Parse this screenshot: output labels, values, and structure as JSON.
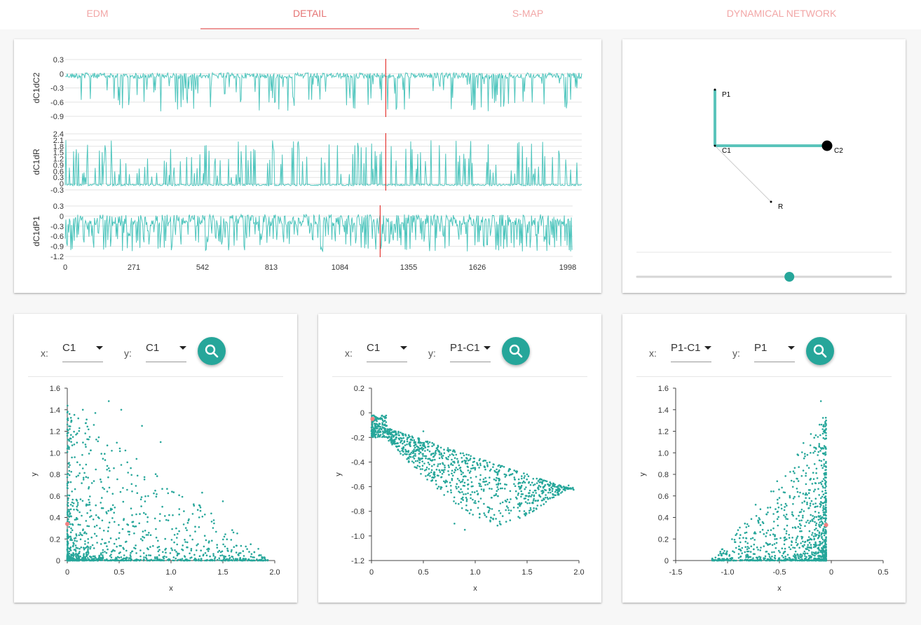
{
  "tabs": [
    {
      "label": "EDM",
      "active": false
    },
    {
      "label": "DETAIL",
      "active": true
    },
    {
      "label": "S-MAP",
      "active": false
    },
    {
      "label": "DYNAMICAL NETWORK",
      "active": false
    }
  ],
  "colors": {
    "series": "#4ec5bd",
    "marker": "#e53935",
    "point": "#26a69a",
    "highlight": "#f28080",
    "tab": "#f2a6a6"
  },
  "timeseries": {
    "x_ticks": [
      "0",
      "271",
      "542",
      "813",
      "1084",
      "1355",
      "1626",
      "1998"
    ],
    "x_range": [
      0,
      1998
    ],
    "marker_x": 1240,
    "panels": [
      {
        "ylabel": "dC1dC2",
        "ticks": [
          "0.3",
          "0",
          "-0.3",
          "-0.6",
          "-0.9"
        ],
        "ymin": -0.9,
        "ymax": 0.3
      },
      {
        "ylabel": "dC1dR",
        "ticks": [
          "2.4",
          "2.1",
          "1.8",
          "1.5",
          "1.2",
          "0.9",
          "0.6",
          "0.3",
          "0",
          "-0.3"
        ],
        "ymin": -0.3,
        "ymax": 2.4
      },
      {
        "ylabel": "dC1dP1",
        "ticks": [
          "0.3",
          "0",
          "-0.3",
          "-0.6",
          "-0.9",
          "-1.2"
        ],
        "ymin": -1.2,
        "ymax": 0.3
      }
    ]
  },
  "network": {
    "nodes": [
      {
        "label": "P1",
        "size": "small"
      },
      {
        "label": "C1",
        "size": "small"
      },
      {
        "label": "C2",
        "size": "large"
      },
      {
        "label": "R",
        "size": "small"
      }
    ],
    "slider_value_fraction": 0.6
  },
  "scatter_panels": [
    {
      "x_label": "x:",
      "x_value": "C1",
      "y_label": "y:",
      "y_value": "C1"
    },
    {
      "x_label": "x:",
      "x_value": "C1",
      "y_label": "y:",
      "y_value": "P1-C1"
    },
    {
      "x_label": "x:",
      "x_value": "P1-C1",
      "y_label": "y:",
      "y_value": "P1"
    }
  ],
  "chart_data": [
    {
      "type": "scatter",
      "title": "",
      "xlabel": "x",
      "ylabel": "y",
      "xlim": [
        0,
        2.0
      ],
      "ylim": [
        0,
        1.6
      ],
      "xticks": [
        "0",
        "0.5",
        "1.0",
        "1.5",
        "2.0"
      ],
      "yticks": [
        "0",
        "0.2",
        "0.4",
        "0.6",
        "0.8",
        "1.0",
        "1.2",
        "1.4",
        "1.6"
      ],
      "highlight": [
        0.0,
        0.34
      ],
      "sample_points": [
        [
          0.15,
          1.4
        ],
        [
          0.27,
          1.37
        ],
        [
          0.4,
          1.48
        ],
        [
          0.52,
          1.4
        ],
        [
          0.72,
          1.25
        ],
        [
          0.04,
          1.3
        ],
        [
          0.9,
          1.1
        ],
        [
          1.3,
          0.63
        ],
        [
          1.5,
          0.55
        ],
        [
          1.9,
          0.03
        ]
      ]
    },
    {
      "type": "scatter",
      "title": "",
      "xlabel": "x",
      "ylabel": "y",
      "xlim": [
        0,
        2.0
      ],
      "ylim": [
        -1.2,
        0.2
      ],
      "xticks": [
        "0",
        "0.5",
        "1.0",
        "1.5",
        "2.0"
      ],
      "yticks": [
        "0.2",
        "0",
        "-0.2",
        "-0.4",
        "-0.6",
        "-0.8",
        "-1.0",
        "-1.2"
      ],
      "highlight": [
        0.01,
        -0.05
      ],
      "sample_points": [
        [
          0.05,
          -0.05
        ],
        [
          0.3,
          -0.25
        ],
        [
          0.6,
          -0.5
        ],
        [
          0.8,
          -0.9
        ],
        [
          0.9,
          -0.95
        ],
        [
          1.2,
          -0.55
        ],
        [
          1.5,
          -0.5
        ],
        [
          1.9,
          -0.59
        ],
        [
          0.5,
          -0.15
        ],
        [
          1.0,
          -0.45
        ]
      ]
    },
    {
      "type": "scatter",
      "title": "",
      "xlabel": "x",
      "ylabel": "y",
      "xlim": [
        -1.5,
        0.5
      ],
      "ylim": [
        0,
        1.6
      ],
      "xticks": [
        "-1.5",
        "-1.0",
        "-0.5",
        "0",
        "0.5"
      ],
      "yticks": [
        "0",
        "0.2",
        "0.4",
        "0.6",
        "0.8",
        "1.0",
        "1.2",
        "1.4",
        "1.6"
      ],
      "highlight": [
        -0.05,
        0.33
      ],
      "sample_points": [
        [
          -0.1,
          1.48
        ],
        [
          -0.05,
          1.3
        ],
        [
          -0.2,
          1.0
        ],
        [
          -0.4,
          0.6
        ],
        [
          -0.7,
          0.35
        ],
        [
          -1.1,
          0.0
        ],
        [
          -0.3,
          0.3
        ],
        [
          -0.05,
          0.1
        ],
        [
          -0.6,
          0.15
        ],
        [
          -0.15,
          0.5
        ]
      ]
    }
  ]
}
